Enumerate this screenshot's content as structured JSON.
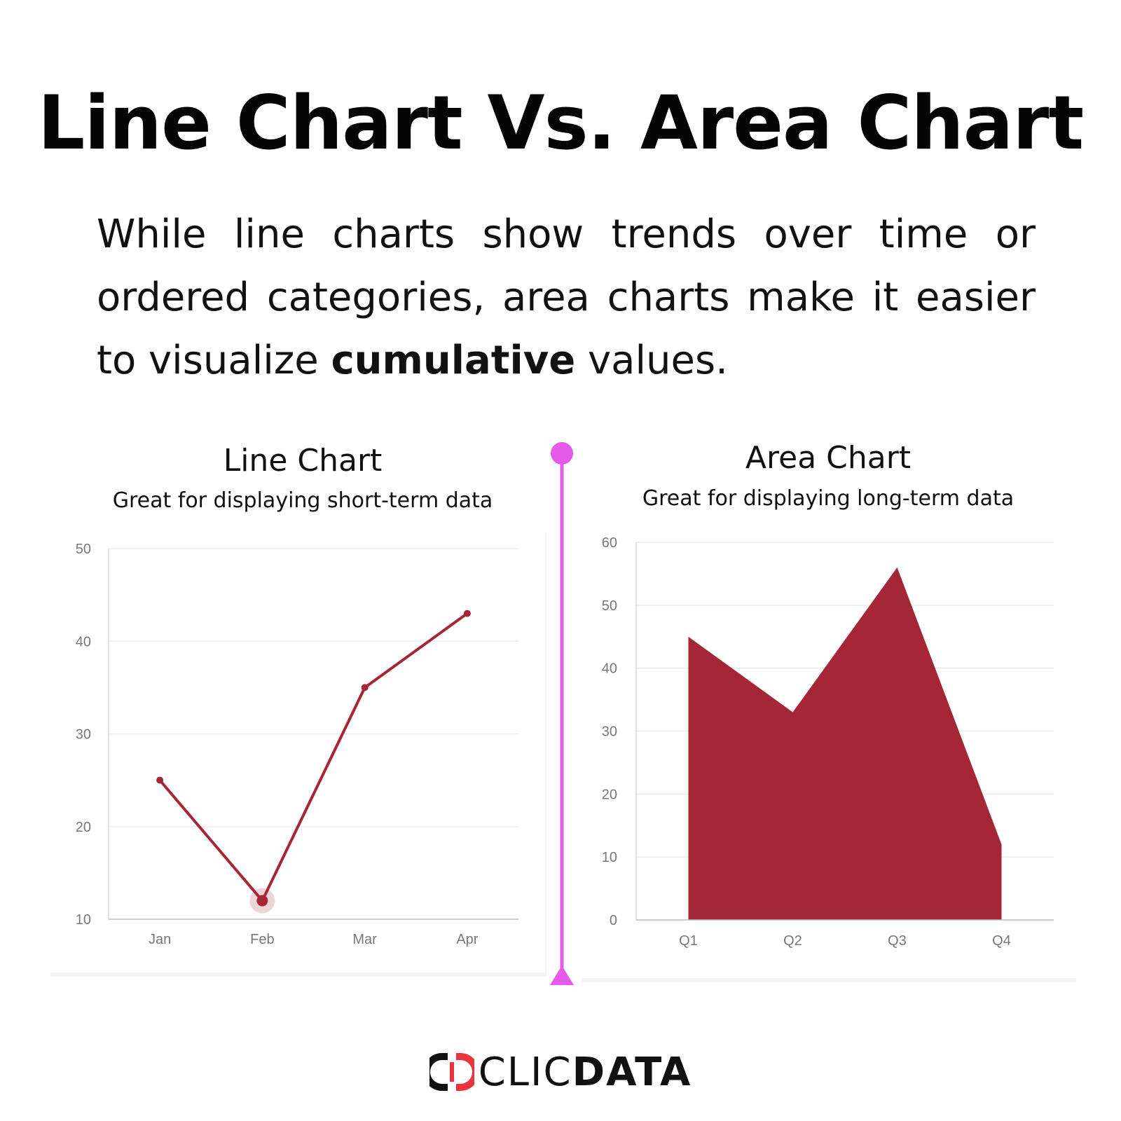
{
  "title": "Line Chart Vs. Area Chart",
  "intro": {
    "before": "While line charts show trends over time or ordered categories, area charts make it easier to visualize ",
    "emphasis": "cumulative",
    "after": " values."
  },
  "colors": {
    "series": "#a52636",
    "divider": "#e35be6",
    "grid": "#ececec",
    "tick_text": "#777777",
    "logo_accent": "#e8343a"
  },
  "logo": {
    "thin": "CLIC",
    "bold": "DATA"
  },
  "chart_data": [
    {
      "type": "line",
      "title": "Line Chart",
      "subtitle": "Great for displaying short-term data",
      "categories": [
        "Jan",
        "Feb",
        "Mar",
        "Apr"
      ],
      "values": [
        25,
        12,
        35,
        43
      ],
      "ylim": [
        10,
        50
      ],
      "yticks": [
        10,
        20,
        30,
        40,
        50
      ],
      "highlighted_category": "Feb",
      "grid": true
    },
    {
      "type": "area",
      "title": "Area Chart",
      "subtitle": "Great for displaying long-term data",
      "categories": [
        "Q1",
        "Q2",
        "Q3",
        "Q4"
      ],
      "values": [
        45,
        33,
        56,
        12
      ],
      "ylim": [
        0,
        60
      ],
      "yticks": [
        0,
        10,
        20,
        30,
        40,
        50,
        60
      ],
      "grid": true
    }
  ]
}
